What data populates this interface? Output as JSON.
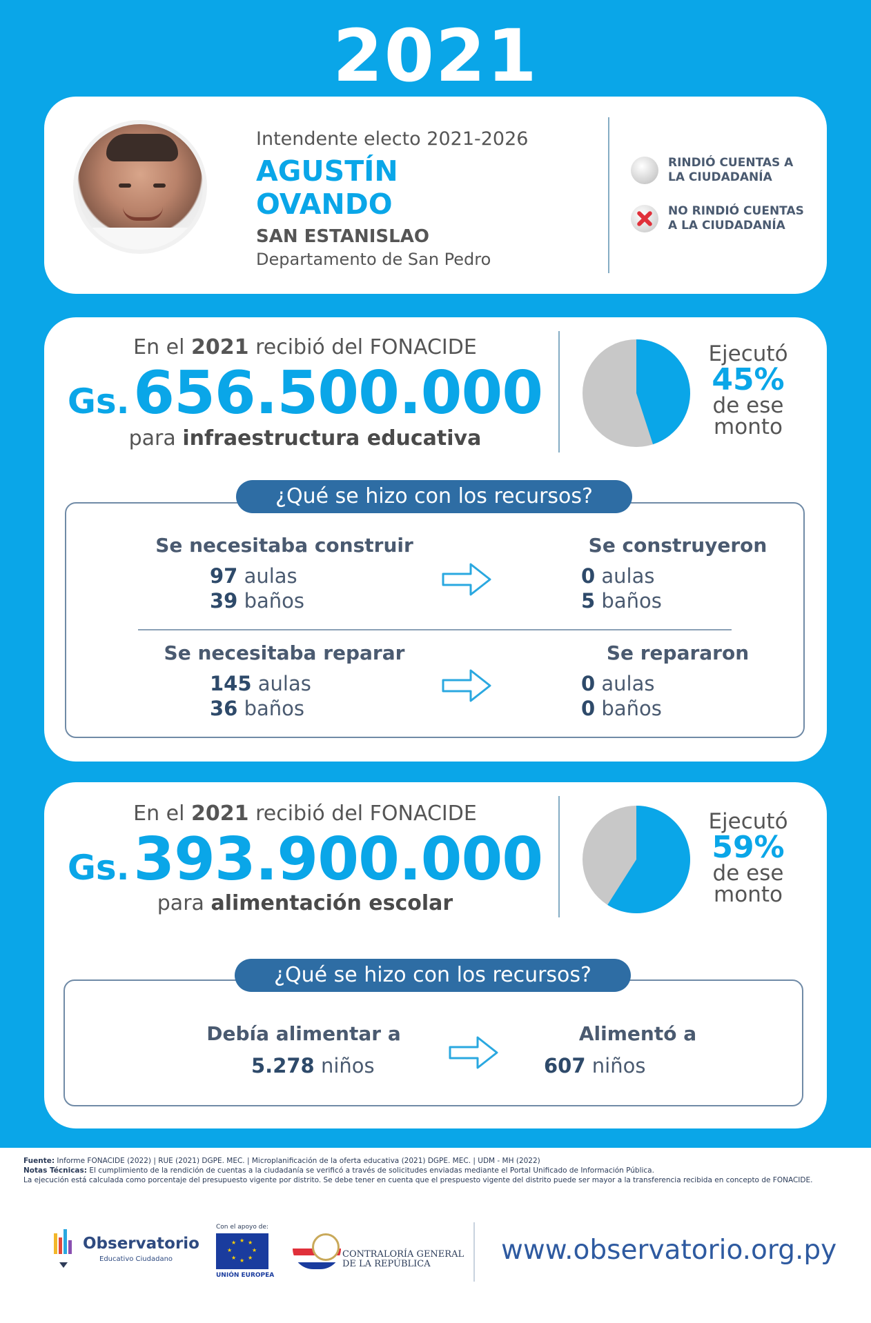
{
  "year": "2021",
  "official": {
    "role": "Intendente electo 2021-2026",
    "name_line1": "AGUSTÍN",
    "name_line2": "OVANDO",
    "city": "SAN ESTANISLAO",
    "department": "Departamento de San Pedro"
  },
  "legend": {
    "rendered": "RINDIÓ CUENTAS A LA CIUDADANÍA",
    "not_rendered": "NO RINDIÓ CUENTAS A LA CIUDADANÍA"
  },
  "infrastructure": {
    "received_pre": "En el",
    "received_year": "2021",
    "received_post": "recibió del FONACIDE",
    "currency": "Gs.",
    "amount": "656.500.000",
    "purpose_pre": "para",
    "purpose": "infraestructura educativa",
    "executed_label": "Ejecutó",
    "executed_pct": "45%",
    "executed_fraction": 0.45,
    "executed_suffix_1": "de ese",
    "executed_suffix_2": "monto",
    "question": "¿Qué se hizo con los recursos?",
    "need_build_title": "Se necesitaba construir",
    "need_build_classrooms": "97",
    "need_build_bathrooms": "39",
    "built_title": "Se construyeron",
    "built_classrooms": "0",
    "built_bathrooms": "5",
    "need_repair_title": "Se necesitaba reparar",
    "need_repair_classrooms": "145",
    "need_repair_bathrooms": "36",
    "repaired_title": "Se repararon",
    "repaired_classrooms": "0",
    "repaired_bathrooms": "0",
    "unit_classrooms": "aulas",
    "unit_bathrooms": "baños"
  },
  "food": {
    "received_pre": "En el",
    "received_year": "2021",
    "received_post": "recibió del FONACIDE",
    "currency": "Gs.",
    "amount": "393.900.000",
    "purpose_pre": "para",
    "purpose": "alimentación escolar",
    "executed_label": "Ejecutó",
    "executed_pct": "59%",
    "executed_fraction": 0.59,
    "executed_suffix_1": "de ese",
    "executed_suffix_2": "monto",
    "question": "¿Qué se hizo con los recursos?",
    "should_feed_title": "Debía alimentar a",
    "should_feed_count": "5.278",
    "fed_title": "Alimentó a",
    "fed_count": "607",
    "unit_children": "niños"
  },
  "notes": {
    "source_label": "Fuente:",
    "source_text": "Informe FONACIDE (2022) | RUE (2021) DGPE. MEC. | Microplanificación de la oferta educativa (2021) DGPE. MEC. | UDM - MH (2022)",
    "tech_label": "Notas Técnicas:",
    "tech_text_1": "El cumplimiento de la rendición de cuentas a la ciudadanía se verificó a través de solicitudes enviadas mediante el Portal Unificado de Información Pública.",
    "tech_text_2": "La ejecución está calculada como porcentaje del presupuesto vigente por distrito. Se debe tener en cuenta que el prespuesto vigente del distrito puede ser mayor a la transferencia recibida en concepto de FONACIDE."
  },
  "footer": {
    "observatorio_name": "Observatorio",
    "observatorio_sub": "Educativo Ciudadano",
    "eu_top": "Con el apoyo de:",
    "eu_bottom": "UNIÓN EUROPEA",
    "cgr_line1": "CONTRALORÍA GENERAL",
    "cgr_line2": "DE LA REPÚBLICA",
    "url": "www.observatorio.org.py"
  },
  "colors": {
    "brand_blue": "#0aa6e8",
    "pill_blue": "#2e6da4",
    "pie_grey": "#c8c8c8",
    "text_dark": "#4a5a70"
  }
}
